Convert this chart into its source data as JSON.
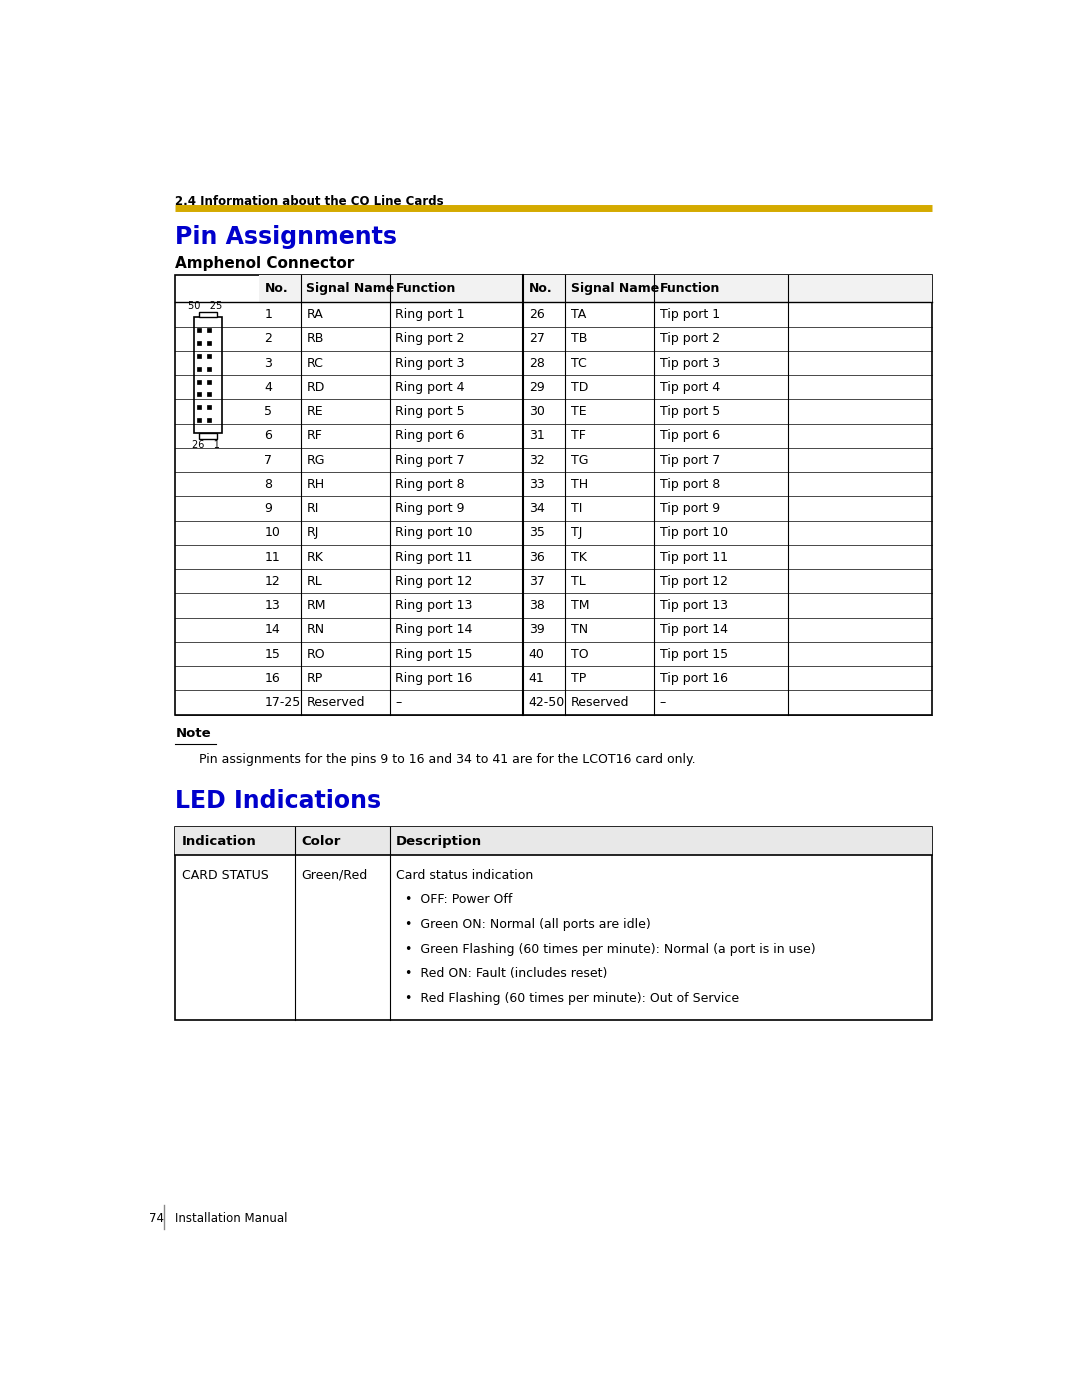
{
  "page_header": "2.4 Information about the CO Line Cards",
  "header_line_color": "#D4AA00",
  "title_pin": "Pin Assignments",
  "title_color": "#0000CC",
  "subtitle_amphenol": "Amphenol Connector",
  "pin_table_headers": [
    "No.",
    "Signal Name",
    "Function",
    "No.",
    "Signal Name",
    "Function"
  ],
  "pin_rows": [
    [
      "1",
      "RA",
      "Ring port 1",
      "26",
      "TA",
      "Tip port 1"
    ],
    [
      "2",
      "RB",
      "Ring port 2",
      "27",
      "TB",
      "Tip port 2"
    ],
    [
      "3",
      "RC",
      "Ring port 3",
      "28",
      "TC",
      "Tip port 3"
    ],
    [
      "4",
      "RD",
      "Ring port 4",
      "29",
      "TD",
      "Tip port 4"
    ],
    [
      "5",
      "RE",
      "Ring port 5",
      "30",
      "TE",
      "Tip port 5"
    ],
    [
      "6",
      "RF",
      "Ring port 6",
      "31",
      "TF",
      "Tip port 6"
    ],
    [
      "7",
      "RG",
      "Ring port 7",
      "32",
      "TG",
      "Tip port 7"
    ],
    [
      "8",
      "RH",
      "Ring port 8",
      "33",
      "TH",
      "Tip port 8"
    ],
    [
      "9",
      "RI",
      "Ring port 9",
      "34",
      "TI",
      "Tip port 9"
    ],
    [
      "10",
      "RJ",
      "Ring port 10",
      "35",
      "TJ",
      "Tip port 10"
    ],
    [
      "11",
      "RK",
      "Ring port 11",
      "36",
      "TK",
      "Tip port 11"
    ],
    [
      "12",
      "RL",
      "Ring port 12",
      "37",
      "TL",
      "Tip port 12"
    ],
    [
      "13",
      "RM",
      "Ring port 13",
      "38",
      "TM",
      "Tip port 13"
    ],
    [
      "14",
      "RN",
      "Ring port 14",
      "39",
      "TN",
      "Tip port 14"
    ],
    [
      "15",
      "RO",
      "Ring port 15",
      "40",
      "TO",
      "Tip port 15"
    ],
    [
      "16",
      "RP",
      "Ring port 16",
      "41",
      "TP",
      "Tip port 16"
    ],
    [
      "17-25",
      "Reserved",
      "–",
      "42-50",
      "Reserved",
      "–"
    ]
  ],
  "note_label": "Note",
  "note_text": "Pin assignments for the pins 9 to 16 and 34 to 41 are for the LCOT16 card only.",
  "title_led": "LED Indications",
  "led_table_headers": [
    "Indication",
    "Color",
    "Description"
  ],
  "led_rows": [
    [
      "CARD STATUS",
      "Green/Red",
      "Card status indication\n•  OFF: Power Off\n•  Green ON: Normal (all ports are idle)\n•  Green Flashing (60 times per minute): Normal (a port is in use)\n•  Red ON: Fault (includes reset)\n•  Red Flashing (60 times per minute): Out of Service"
    ]
  ],
  "footer_num": "74",
  "footer_text": "Installation Manual",
  "bg_color": "#FFFFFF",
  "text_color": "#000000",
  "table_border_color": "#000000",
  "connector_label_top": "50   25",
  "connector_label_bot": "26   1"
}
